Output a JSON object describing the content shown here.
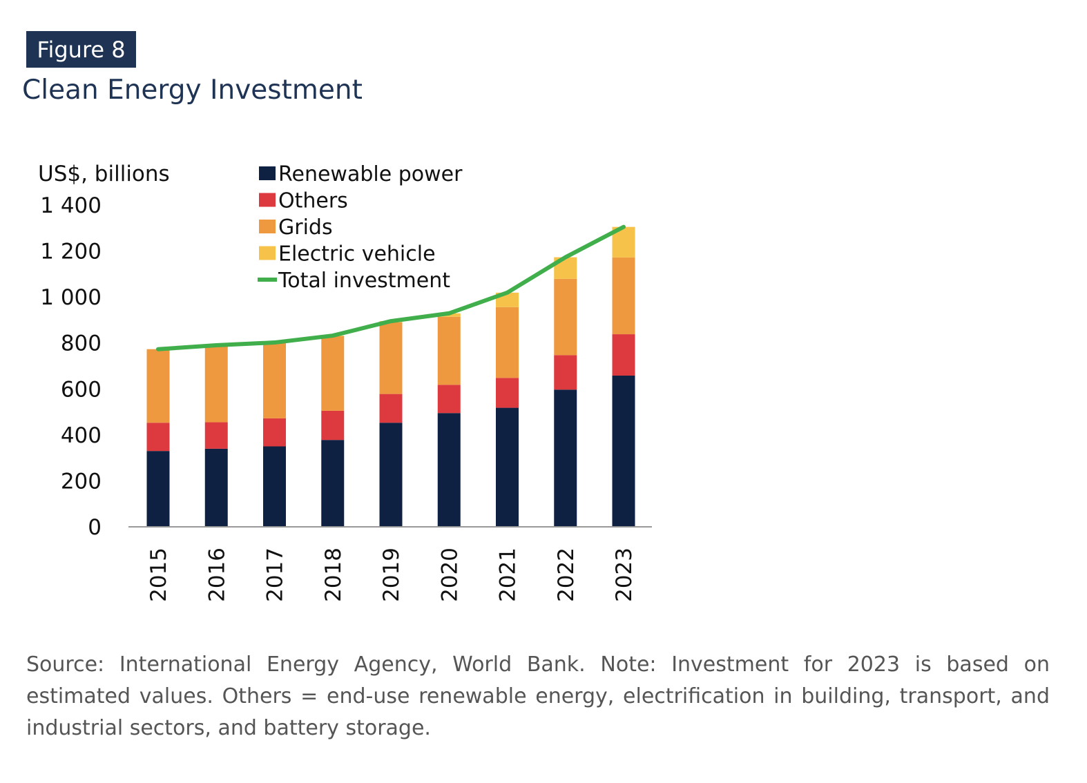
{
  "figure": {
    "label": "Figure 8",
    "title": "Clean Energy Investment"
  },
  "caption": "Source: International Energy Agency, World Bank. Note: Investment for 2023 is based on estimated values. Others = end-use renewable energy, electrification in building, transport, and industrial sectors, and battery storage.",
  "chart_data": {
    "type": "bar",
    "stacked": true,
    "title": "Clean Energy Investment",
    "ylabel": "US$, billions",
    "xlabel": "",
    "ylim": [
      0,
      1400
    ],
    "yticks": [
      0,
      200,
      400,
      600,
      800,
      1000,
      1200,
      1400
    ],
    "ytick_labels": [
      "0",
      "200",
      "400",
      "600",
      "800",
      "1 000",
      "1 200",
      "1 400"
    ],
    "categories": [
      "2015",
      "2016",
      "2017",
      "2018",
      "2019",
      "2020",
      "2021",
      "2022",
      "2023"
    ],
    "series": [
      {
        "name": "Renewable power",
        "color": "#0f2143",
        "values": [
          330,
          340,
          350,
          378,
          453,
          495,
          518,
          597,
          658
        ]
      },
      {
        "name": "Others",
        "color": "#dc3a3f",
        "values": [
          123,
          115,
          122,
          127,
          125,
          123,
          130,
          150,
          180
        ]
      },
      {
        "name": "Grids",
        "color": "#ee9840",
        "values": [
          320,
          335,
          330,
          325,
          312,
          296,
          308,
          332,
          334
        ]
      },
      {
        "name": "Electric vehicle",
        "color": "#f6c24a",
        "values": [
          0,
          0,
          0,
          2,
          5,
          15,
          63,
          94,
          133
        ]
      }
    ],
    "line": {
      "name": "Total investment",
      "color": "#3fae4b",
      "values": [
        773,
        790,
        802,
        832,
        895,
        929,
        1019,
        1173,
        1305
      ]
    },
    "legend_position": "top-center",
    "grid": false
  }
}
